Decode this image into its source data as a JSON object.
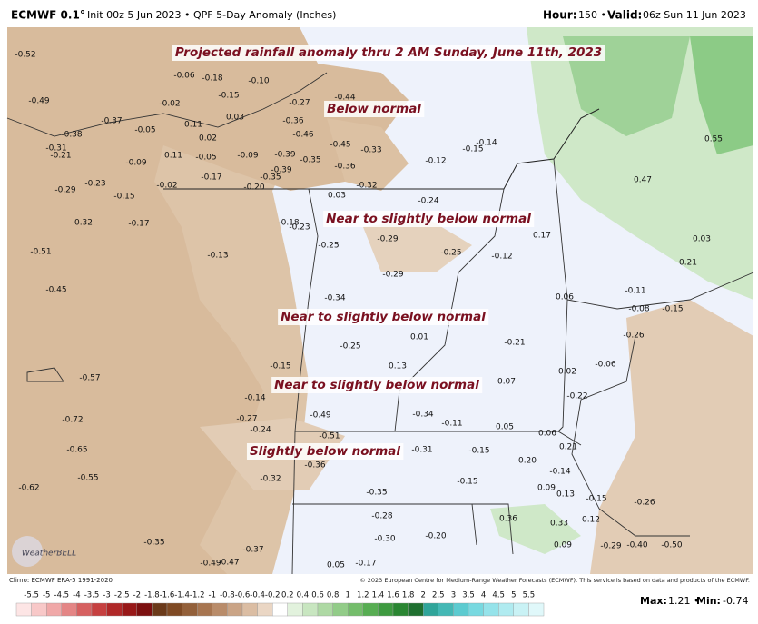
{
  "header": {
    "model": "ECMWF 0.1°",
    "product": "Init 00z 5 Jun 2023 • QPF 5-Day Anomaly (Inches)",
    "hour_label": "Hour:",
    "hour": "150 •",
    "valid_label": "Valid:",
    "valid": "06z Sun 11 Jun 2023"
  },
  "annotations": [
    "Projected rainfall anomaly thru 2 AM Sunday, June 11th, 2023",
    "Below normal",
    "Near to slightly below normal",
    "Near to slightly below normal",
    "Near to slightly below normal",
    "Slightly below normal"
  ],
  "map_labels": [
    "-0.52",
    "-0.06",
    "-0.18",
    "-0.10",
    "-0.15",
    "-0.49",
    "-0.02",
    "-0.27",
    "-0.44",
    "-0.37",
    "0.11",
    "0.03",
    "-0.36",
    "-0.38",
    "-0.05",
    "0.02",
    "-0.46",
    "-0.45",
    "-0.33",
    "-0.14",
    "-0.31",
    "-0.21",
    "0.11",
    "-0.05",
    "-0.09",
    "-0.39",
    "-0.35",
    "-0.36",
    "-0.12",
    "-0.15",
    "-0.09",
    "-0.39",
    "-0.17",
    "-0.35",
    "-0.29",
    "-0.23",
    "-0.02",
    "-0.20",
    "-0.32",
    "0.47",
    "-0.15",
    "0.03",
    "-0.24",
    "0.32",
    "-0.17",
    "-0.18",
    "-0.23",
    "-0.29",
    "-0.25",
    "0.17",
    "0.03",
    "-0.51",
    "-0.13",
    "-0.25",
    "-0.12",
    "0.21",
    "-0.29",
    "-0.45",
    "-0.34",
    "0.06",
    "-0.11",
    "-0.08",
    "-0.15",
    "0.01",
    "-0.25",
    "-0.21",
    "-0.26",
    "-0.15",
    "0.13",
    "0.02",
    "-0.06",
    "-0.57",
    "0.07",
    "-0.14",
    "-0.22",
    "-0.72",
    "-0.27",
    "-0.49",
    "-0.34",
    "-0.11",
    "0.05",
    "-0.24",
    "-0.51",
    "0.06",
    "-0.65",
    "-0.31",
    "-0.15",
    "0.21",
    "-0.36",
    "0.20",
    "-0.14",
    "-0.55",
    "-0.32",
    "-0.15",
    "-0.62",
    "0.09",
    "-0.35",
    "0.13",
    "-0.15",
    "-0.26",
    "0.36",
    "0.33",
    "-0.28",
    "0.12",
    "-0.20",
    "-0.30",
    "0.09",
    "-0.29",
    "-0.40",
    "-0.50",
    "-0.35",
    "-0.37",
    "-0.49",
    "-0.47",
    "0.05",
    "-0.17",
    "0.55"
  ],
  "logo": "WeatherBELL",
  "footer": {
    "climo": "Climo: ECMWF ERA-5 1991-2020",
    "copyright": "© 2023 European Centre for Medium-Range Weather Forecasts (ECMWF). This service is based on data and products of the ECMWF.",
    "max_label": "Max:",
    "max": "1.21 •",
    "min_label": "Min:",
    "min": "-0.74"
  },
  "colorbar": {
    "ticks": [
      "-5.5",
      "-5",
      "-4.5",
      "-4",
      "-3.5",
      "-3",
      "-2.5",
      "-2",
      "-1.8",
      "-1.6",
      "-1.4",
      "-1.2",
      "-1",
      "-0.8",
      "-0.6",
      "-0.4",
      "-0.2",
      "0.2",
      "0.4",
      "0.6",
      "0.8",
      "1",
      "1.2",
      "1.4",
      "1.6",
      "1.8",
      "2",
      "2.5",
      "3",
      "3.5",
      "4",
      "4.5",
      "5",
      "5.5"
    ],
    "colors": [
      "#fde5e5",
      "#f8c8c8",
      "#f0a8a8",
      "#e48585",
      "#d66060",
      "#c64040",
      "#b02828",
      "#981818",
      "#7c1010",
      "#6b3a1a",
      "#7f4a24",
      "#93603a",
      "#a77550",
      "#b98c6a",
      "#caa486",
      "#dbbda3",
      "#ead6c4",
      "#ffffff",
      "#e2f2dd",
      "#c8e6c0",
      "#aed9a4",
      "#92cc88",
      "#74bd6b",
      "#57ad52",
      "#3e9a40",
      "#2a8632",
      "#1f7030",
      "#2fa59a",
      "#44b8b5",
      "#5ccbd0",
      "#78d9e0",
      "#95e3ea",
      "#b0ebf0",
      "#c9f2f5",
      "#e0f8fa"
    ]
  }
}
